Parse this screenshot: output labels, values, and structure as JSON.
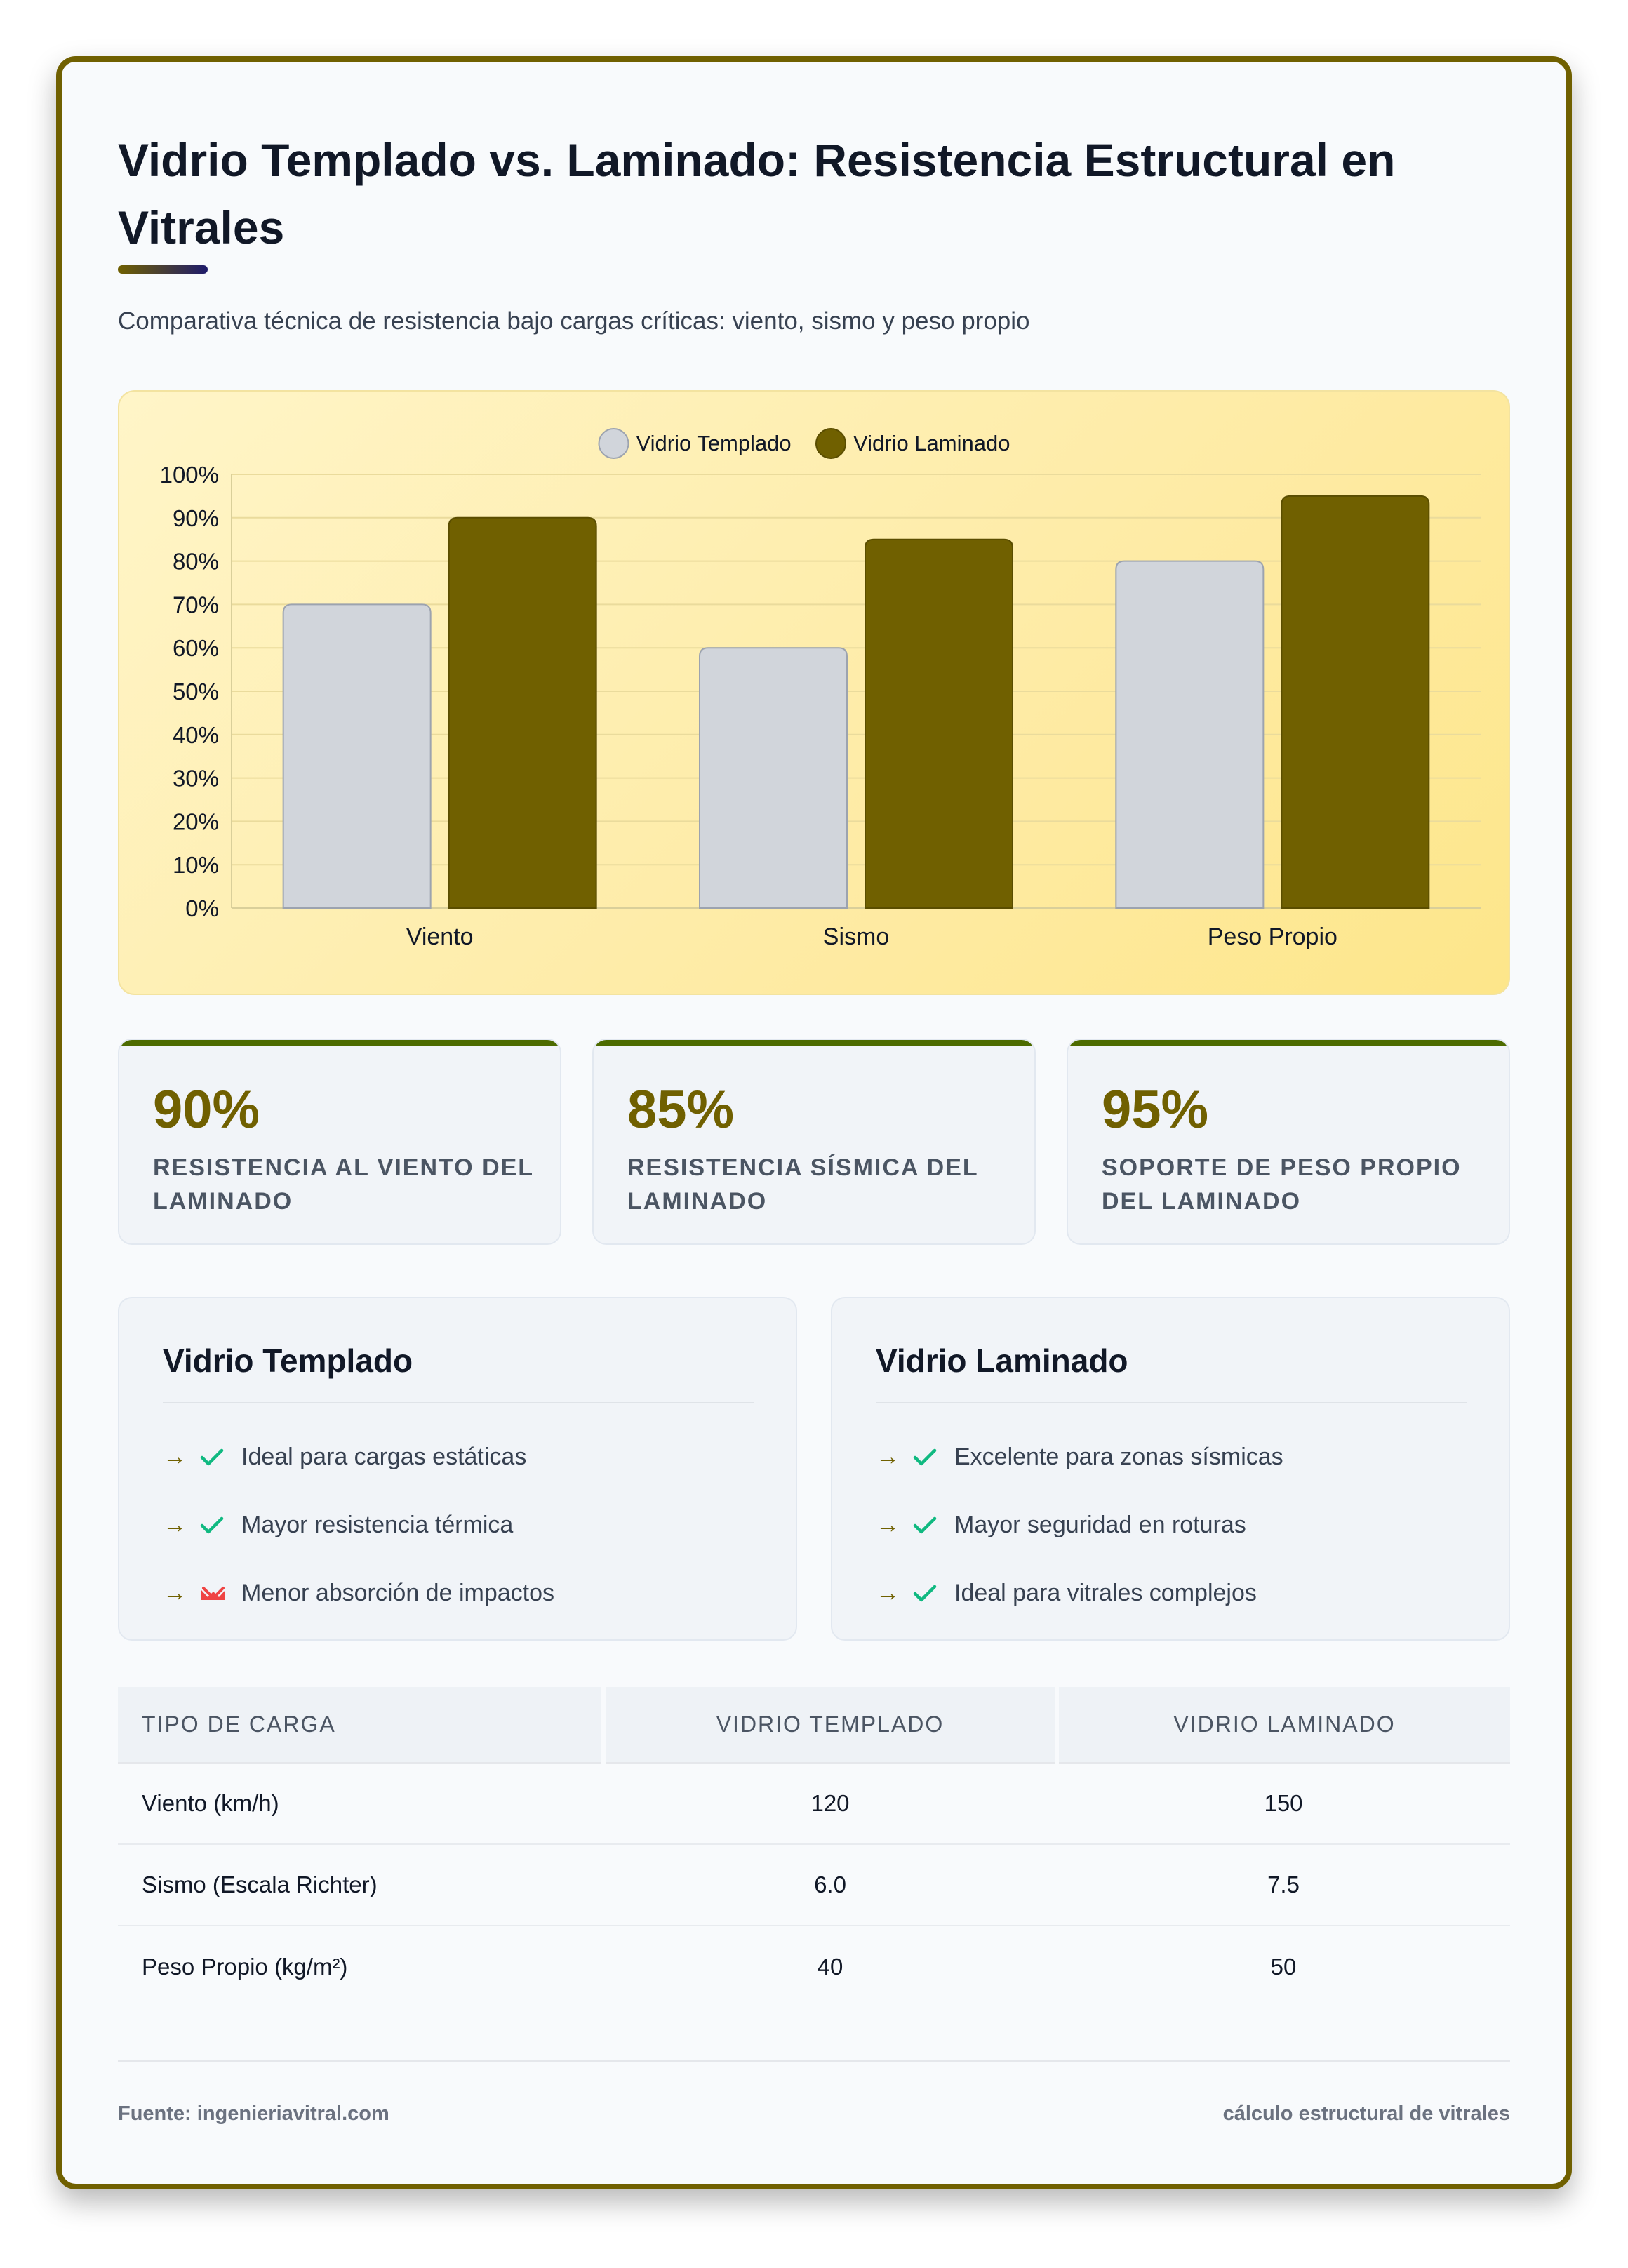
{
  "header": {
    "title": "Vidrio Templado vs. Laminado: Resistencia Estructural en Vitrales",
    "subtitle": "Comparativa técnica de resistencia bajo cargas críticas: viento, sismo y peso propio"
  },
  "colors": {
    "accent": "#706000",
    "templado": "#d1d5db",
    "laminado": "#706000",
    "check": "#10b981",
    "cross": "#ef4444"
  },
  "chart_data": {
    "type": "bar",
    "categories": [
      "Viento",
      "Sismo",
      "Peso Propio"
    ],
    "series": [
      {
        "name": "Vidrio Templado",
        "values": [
          70,
          60,
          80
        ]
      },
      {
        "name": "Vidrio Laminado",
        "values": [
          90,
          85,
          95
        ]
      }
    ],
    "ylim": [
      0,
      100
    ],
    "yticks": [
      "0%",
      "10%",
      "20%",
      "30%",
      "40%",
      "50%",
      "60%",
      "70%",
      "80%",
      "90%",
      "100%"
    ],
    "grid": true,
    "legend": "top-center"
  },
  "stats": [
    {
      "value": "90%",
      "label": "RESISTENCIA AL VIENTO DEL LAMINADO"
    },
    {
      "value": "85%",
      "label": "RESISTENCIA SÍSMICA DEL LAMINADO"
    },
    {
      "value": "95%",
      "label": "SOPORTE DE PESO PROPIO DEL LAMINADO"
    }
  ],
  "comparison": {
    "templado": {
      "title": "Vidrio Templado",
      "items": [
        {
          "text": "Ideal para cargas estáticas",
          "icon": "check-icon"
        },
        {
          "text": "Mayor resistencia térmica",
          "icon": "check-icon"
        },
        {
          "text": "Menor absorción de impactos",
          "icon": "cross-icon"
        }
      ]
    },
    "laminado": {
      "title": "Vidrio Laminado",
      "items": [
        {
          "text": "Excelente para zonas sísmicas",
          "icon": "check-icon"
        },
        {
          "text": "Mayor seguridad en roturas",
          "icon": "check-icon"
        },
        {
          "text": "Ideal para vitrales complejos",
          "icon": "check-icon"
        }
      ]
    },
    "arrow": "→"
  },
  "table": {
    "headers": [
      "TIPO DE CARGA",
      "VIDRIO TEMPLADO",
      "VIDRIO LAMINADO"
    ],
    "rows": [
      [
        "Viento (km/h)",
        "120",
        "150"
      ],
      [
        "Sismo (Escala Richter)",
        "6.0",
        "7.5"
      ],
      [
        "Peso Propio (kg/m²)",
        "40",
        "50"
      ]
    ]
  },
  "footer": {
    "source": "Fuente: ingenieriavitral.com",
    "tagline": "cálculo estructural de vitrales"
  }
}
